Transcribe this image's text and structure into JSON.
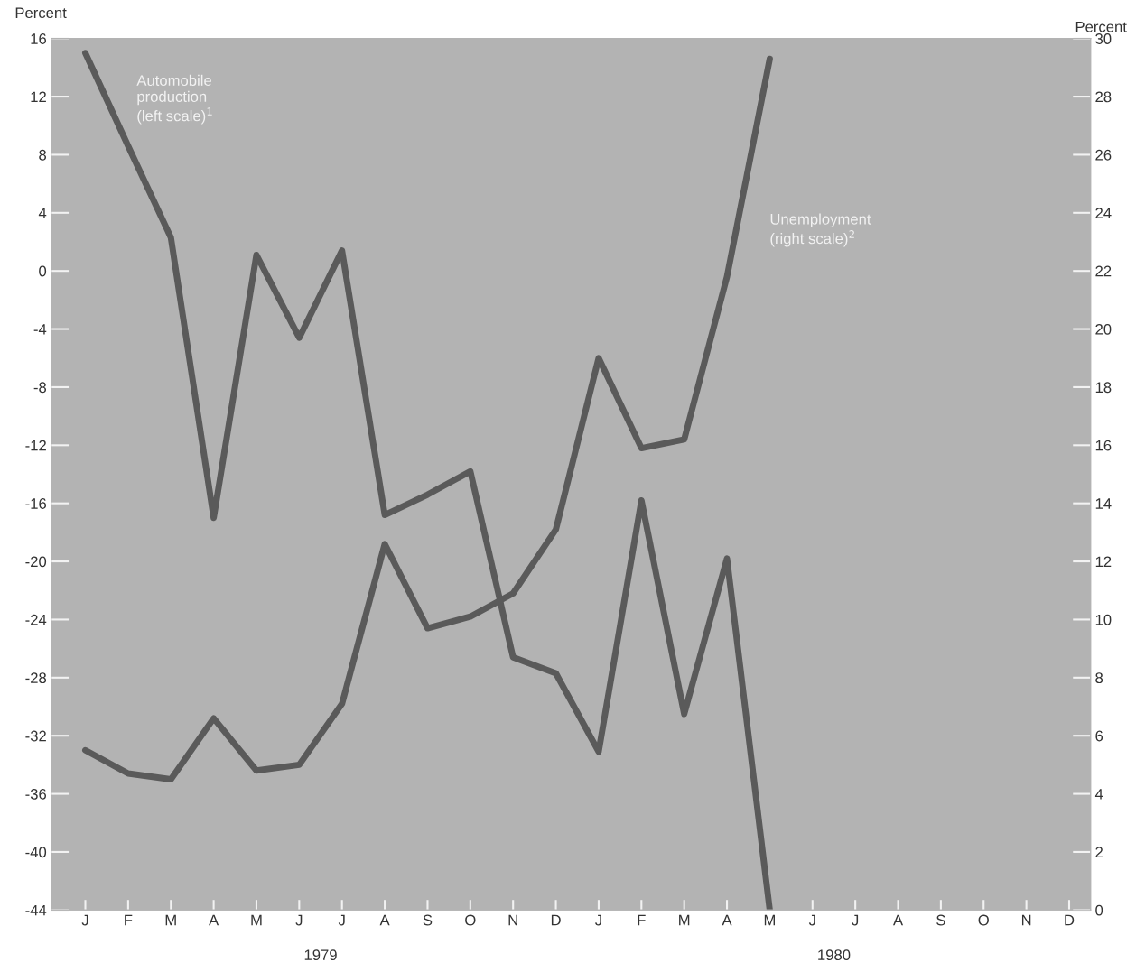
{
  "chart_data": {
    "type": "line",
    "categories": [
      "J",
      "F",
      "M",
      "A",
      "M",
      "J",
      "J",
      "A",
      "S",
      "O",
      "N",
      "D",
      "J",
      "F",
      "M",
      "A",
      "M",
      "J",
      "J",
      "A",
      "S",
      "O",
      "N",
      "D"
    ],
    "series": [
      {
        "name": "Automobile\nproduction\n(left scale)$^{1}$",
        "color": "#5a5a5a",
        "values": [
          15,
          8.6,
          2.3,
          -17,
          1.1,
          -4.6,
          1.4,
          -16.8,
          -15.4,
          -13.8,
          -26.6,
          -27.7,
          -33.1,
          -15.8,
          -30.5,
          -19.8,
          -44,
          null,
          null,
          null,
          null,
          null,
          null,
          null
        ]
      },
      {
        "name": "Unemployment\n(right scale)$^{2}$",
        "axis": "y2",
        "color": "#5a5a5a",
        "values": [
          5.5,
          4.7,
          4.5,
          6.6,
          4.8,
          5.0,
          7.1,
          12.6,
          9.7,
          10.1,
          10.9,
          13.1,
          19.0,
          15.9,
          16.2,
          21.8,
          29.3,
          null,
          null,
          null,
          null,
          null,
          null,
          null
        ]
      }
    ],
    "ylabel": "Percent",
    "y2label": "Percent",
    "ylim": [
      -44,
      16
    ],
    "yticks": [
      -44,
      -40,
      -36,
      -32,
      -28,
      -24,
      -20,
      -16,
      -12,
      -8,
      -4,
      0,
      4,
      8,
      12,
      16
    ],
    "y2lim": [
      0,
      30
    ],
    "y2ticks": [
      0,
      2,
      4,
      6,
      8,
      10,
      12,
      14,
      16,
      18,
      20,
      22,
      24,
      26,
      28,
      30
    ],
    "annotations": [
      "1979",
      "1980"
    ],
    "grid": false,
    "legend": false,
    "marker": "none",
    "line_style": "solid"
  }
}
